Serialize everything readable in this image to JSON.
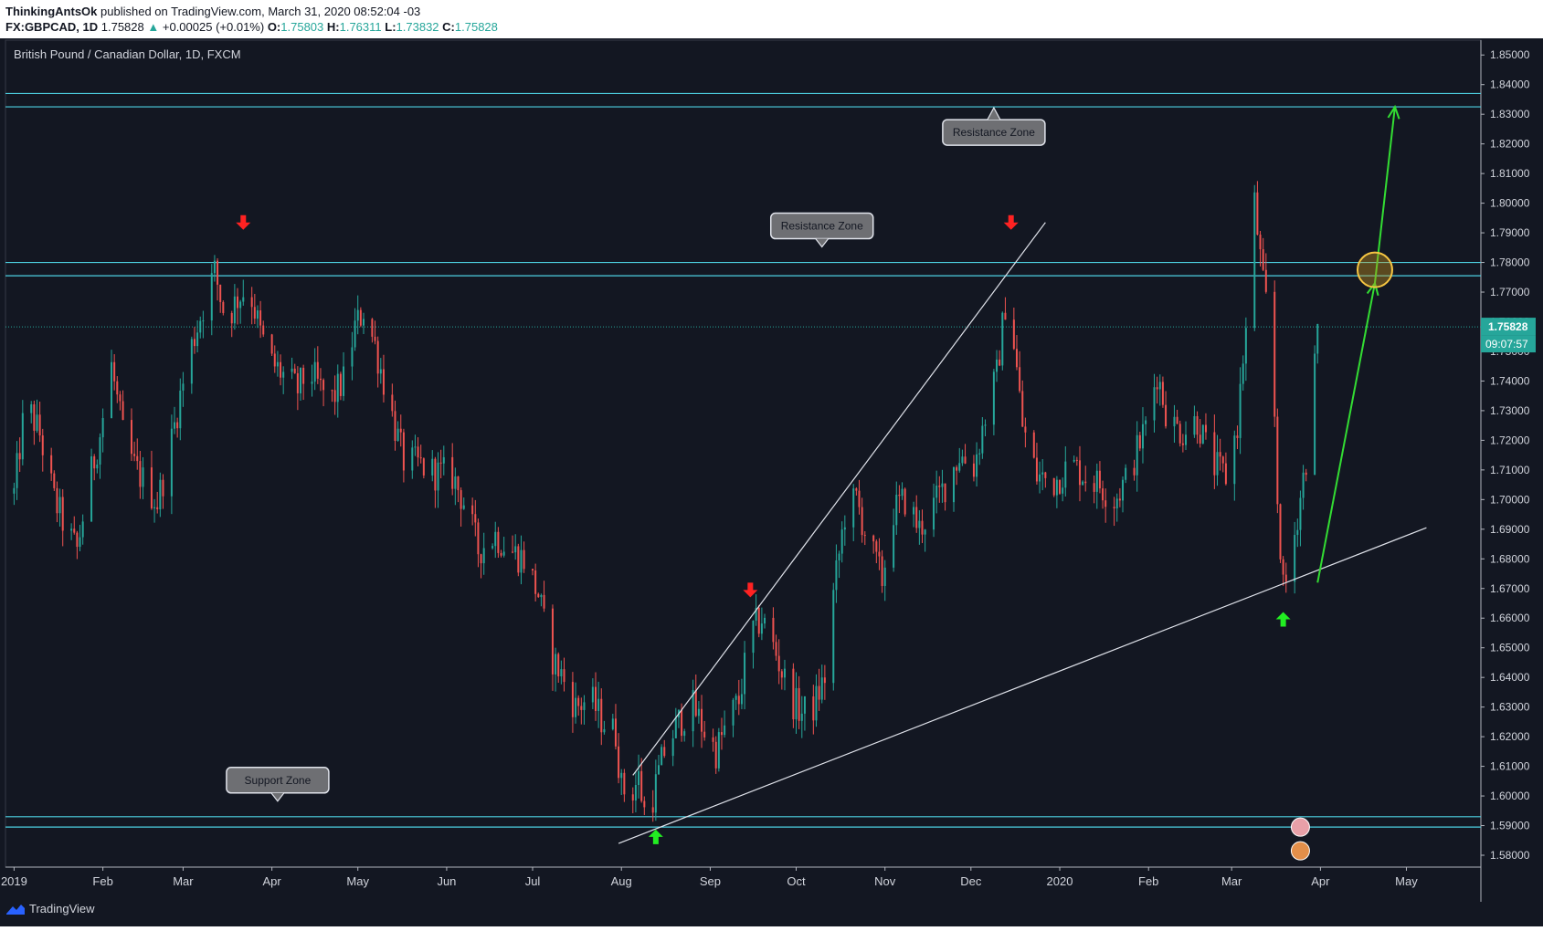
{
  "header": {
    "author": "ThinkingAntsOk",
    "published_text": "published on TradingView.com, March 31, 2020 08:52:04 -03",
    "symbol": "FX:GBPCAD, 1D",
    "last": "1.75828",
    "change_arrow": "▲",
    "change": "+0.00025 (+0.01%)",
    "o_label": "O:",
    "o_value": "1.75803",
    "h_label": "H:",
    "h_value": "1.76311",
    "l_label": "L:",
    "l_value": "1.73832",
    "c_label": "C:",
    "c_value": "1.75828"
  },
  "chart_data": {
    "type": "candlestick",
    "title": "British Pound / Canadian Dollar, 1D, FXCM",
    "x_tick_labels": [
      "2019",
      "Feb",
      "Mar",
      "Apr",
      "May",
      "Jun",
      "Jul",
      "Aug",
      "Sep",
      "Oct",
      "Nov",
      "Dec",
      "2020",
      "Feb",
      "Mar",
      "Apr",
      "May"
    ],
    "y_tick_labels": [
      "1.85000",
      "1.84000",
      "1.83000",
      "1.82000",
      "1.81000",
      "1.80000",
      "1.79000",
      "1.78000",
      "1.77000",
      "1.76000",
      "1.75000",
      "1.74000",
      "1.73000",
      "1.72000",
      "1.71000",
      "1.70000",
      "1.69000",
      "1.68000",
      "1.67000",
      "1.66000",
      "1.65000",
      "1.64000",
      "1.63000",
      "1.62000",
      "1.61000",
      "1.60000",
      "1.59000",
      "1.58000"
    ],
    "ylim": [
      1.576,
      1.855
    ],
    "last_price_label": "1.75828",
    "countdown_label": "09:07:57",
    "colors": {
      "up": "#26a69a",
      "down": "#ef5350",
      "background": "#131722",
      "zone_line": "#4dd0e1",
      "trend_line": "#e0e3eb",
      "projection": "#33dd33",
      "signal_down": "#ff2222",
      "signal_up": "#22ee22"
    },
    "price_path": [
      [
        "2019-01-01",
        1.702
      ],
      [
        "2019-01-05",
        1.733
      ],
      [
        "2019-01-10",
        1.722
      ],
      [
        "2019-01-15",
        1.7
      ],
      [
        "2019-01-20",
        1.688
      ],
      [
        "2019-01-23",
        1.683
      ],
      [
        "2019-01-27",
        1.705
      ],
      [
        "2019-01-31",
        1.722
      ],
      [
        "2019-02-04",
        1.745
      ],
      [
        "2019-02-08",
        1.722
      ],
      [
        "2019-02-12",
        1.711
      ],
      [
        "2019-02-16",
        1.705
      ],
      [
        "2019-02-20",
        1.699
      ],
      [
        "2019-02-24",
        1.715
      ],
      [
        "2019-02-28",
        1.735
      ],
      [
        "2019-03-04",
        1.752
      ],
      [
        "2019-03-08",
        1.765
      ],
      [
        "2019-03-12",
        1.777
      ],
      [
        "2019-03-16",
        1.76
      ],
      [
        "2019-03-20",
        1.768
      ],
      [
        "2019-03-24",
        1.772
      ],
      [
        "2019-03-28",
        1.756
      ],
      [
        "2019-04-01",
        1.746
      ],
      [
        "2019-04-05",
        1.742
      ],
      [
        "2019-04-10",
        1.737
      ],
      [
        "2019-04-14",
        1.744
      ],
      [
        "2019-04-18",
        1.737
      ],
      [
        "2019-04-22",
        1.734
      ],
      [
        "2019-04-26",
        1.74
      ],
      [
        "2019-04-30",
        1.758
      ],
      [
        "2019-05-03",
        1.764
      ],
      [
        "2019-05-07",
        1.752
      ],
      [
        "2019-05-12",
        1.732
      ],
      [
        "2019-05-17",
        1.713
      ],
      [
        "2019-05-22",
        1.712
      ],
      [
        "2019-05-28",
        1.709
      ],
      [
        "2019-06-03",
        1.708
      ],
      [
        "2019-06-08",
        1.697
      ],
      [
        "2019-06-12",
        1.683
      ],
      [
        "2019-06-18",
        1.688
      ],
      [
        "2019-06-23",
        1.683
      ],
      [
        "2019-06-28",
        1.68
      ],
      [
        "2019-07-03",
        1.668
      ],
      [
        "2019-07-07",
        1.648
      ],
      [
        "2019-07-11",
        1.641
      ],
      [
        "2019-07-16",
        1.63
      ],
      [
        "2019-07-21",
        1.633
      ],
      [
        "2019-07-25",
        1.626
      ],
      [
        "2019-07-30",
        1.621
      ],
      [
        "2019-08-01",
        1.603
      ],
      [
        "2019-08-04",
        1.6
      ],
      [
        "2019-08-07",
        1.606
      ],
      [
        "2019-08-09",
        1.595
      ],
      [
        "2019-08-12",
        1.6
      ],
      [
        "2019-08-16",
        1.615
      ],
      [
        "2019-08-21",
        1.625
      ],
      [
        "2019-08-26",
        1.63
      ],
      [
        "2019-08-31",
        1.62
      ],
      [
        "2019-09-03",
        1.615
      ],
      [
        "2019-09-08",
        1.627
      ],
      [
        "2019-09-11",
        1.632
      ],
      [
        "2019-09-15",
        1.655
      ],
      [
        "2019-09-19",
        1.66
      ],
      [
        "2019-09-24",
        1.648
      ],
      [
        "2019-09-29",
        1.633
      ],
      [
        "2019-10-03",
        1.628
      ],
      [
        "2019-10-07",
        1.63
      ],
      [
        "2019-10-11",
        1.64
      ],
      [
        "2019-10-14",
        1.668
      ],
      [
        "2019-10-18",
        1.695
      ],
      [
        "2019-10-22",
        1.7
      ],
      [
        "2019-10-26",
        1.686
      ],
      [
        "2019-10-31",
        1.673
      ],
      [
        "2019-11-04",
        1.696
      ],
      [
        "2019-11-08",
        1.7
      ],
      [
        "2019-11-13",
        1.69
      ],
      [
        "2019-11-18",
        1.698
      ],
      [
        "2019-11-22",
        1.705
      ],
      [
        "2019-11-27",
        1.715
      ],
      [
        "2019-12-02",
        1.711
      ],
      [
        "2019-12-06",
        1.728
      ],
      [
        "2019-12-10",
        1.742
      ],
      [
        "2019-12-13",
        1.766
      ],
      [
        "2019-12-16",
        1.753
      ],
      [
        "2019-12-19",
        1.725
      ],
      [
        "2019-12-24",
        1.708
      ],
      [
        "2019-12-30",
        1.706
      ],
      [
        "2020-01-05",
        1.712
      ],
      [
        "2020-01-10",
        1.708
      ],
      [
        "2020-01-15",
        1.705
      ],
      [
        "2020-01-20",
        1.7
      ],
      [
        "2020-01-25",
        1.708
      ],
      [
        "2020-01-31",
        1.725
      ],
      [
        "2020-02-04",
        1.743
      ],
      [
        "2020-02-08",
        1.726
      ],
      [
        "2020-02-13",
        1.723
      ],
      [
        "2020-02-18",
        1.727
      ],
      [
        "2020-02-23",
        1.712
      ],
      [
        "2020-02-28",
        1.708
      ],
      [
        "2020-03-03",
        1.725
      ],
      [
        "2020-03-05",
        1.748
      ],
      [
        "2020-03-07",
        1.765
      ],
      [
        "2020-03-09",
        1.8
      ],
      [
        "2020-03-12",
        1.772
      ],
      [
        "2020-03-15",
        1.755
      ],
      [
        "2020-03-17",
        1.7
      ],
      [
        "2020-03-19",
        1.669
      ],
      [
        "2020-03-21",
        1.675
      ],
      [
        "2020-03-24",
        1.695
      ],
      [
        "2020-03-28",
        1.72
      ],
      [
        "2020-03-31",
        1.758
      ]
    ],
    "sr_zones": [
      {
        "label": "Resistance Zone",
        "top": 1.837,
        "bottom": 1.8325
      },
      {
        "label": "Resistance Zone",
        "top": 1.78,
        "bottom": 1.7755
      },
      {
        "label": "Support Zone",
        "top": 1.593,
        "bottom": 1.5895
      }
    ],
    "trend_lines": [
      {
        "from": [
          "2019-07-31",
          1.584
        ],
        "to": [
          "2020-05-08",
          1.6905
        ]
      },
      {
        "from": [
          "2019-08-05",
          1.607
        ],
        "to": [
          "2019-12-27",
          1.7935
        ]
      }
    ],
    "projection_path": [
      [
        "2020-03-31",
        1.672
      ],
      [
        "2020-04-20",
        1.773
      ],
      [
        "2020-04-27",
        1.8325
      ]
    ],
    "target_circle": [
      "2020-04-20",
      1.7775
    ],
    "down_signals": [
      [
        "2019-03-22",
        1.7935
      ],
      [
        "2019-09-15",
        1.6695
      ],
      [
        "2019-12-15",
        1.7935
      ]
    ],
    "up_signals": [
      [
        "2019-08-13",
        1.5862
      ],
      [
        "2020-03-19",
        1.6596
      ]
    ],
    "hline_price": 1.75828
  },
  "footer": {
    "brand": "TradingView"
  }
}
